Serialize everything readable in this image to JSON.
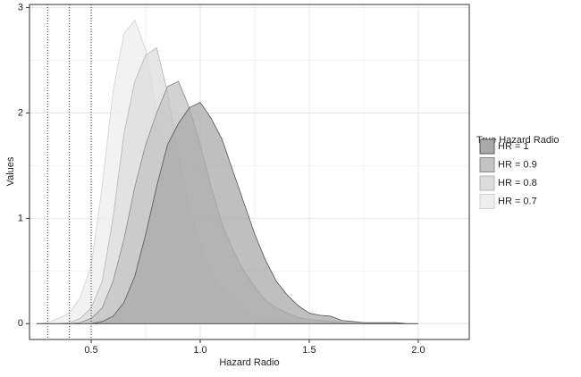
{
  "chart_data": {
    "type": "density",
    "xlabel": "Hazard Radio",
    "ylabel": "Values",
    "legend_title": "True Hazard Radio",
    "legend": "right",
    "grid": true,
    "x": [
      0.25,
      0.3,
      0.35,
      0.4,
      0.45,
      0.5,
      0.55,
      0.6,
      0.65,
      0.7,
      0.75,
      0.8,
      0.85,
      0.9,
      0.95,
      1.0,
      1.05,
      1.1,
      1.15,
      1.2,
      1.25,
      1.3,
      1.35,
      1.4,
      1.45,
      1.5,
      1.55,
      1.6,
      1.65,
      1.7,
      1.75,
      1.8,
      1.85,
      1.9,
      1.95,
      2.0
    ],
    "series": [
      {
        "name": "HR = 1",
        "color": "#a9a9a9",
        "line": "#555555",
        "values": [
          0,
          0,
          0,
          0,
          0,
          0,
          0.02,
          0.07,
          0.2,
          0.45,
          0.85,
          1.3,
          1.7,
          1.9,
          2.05,
          2.1,
          1.95,
          1.75,
          1.45,
          1.15,
          0.85,
          0.6,
          0.4,
          0.27,
          0.17,
          0.1,
          0.08,
          0.07,
          0.03,
          0.02,
          0.01,
          0.01,
          0.01,
          0.01,
          0,
          0
        ]
      },
      {
        "name": "HR = 0.9",
        "color": "#c3c3c3",
        "line": "#8a8a8a",
        "values": [
          0,
          0,
          0,
          0,
          0.01,
          0.05,
          0.15,
          0.4,
          0.8,
          1.3,
          1.7,
          2.0,
          2.25,
          2.3,
          2.05,
          1.7,
          1.3,
          0.95,
          0.7,
          0.5,
          0.35,
          0.22,
          0.15,
          0.1,
          0.06,
          0.04,
          0.03,
          0.02,
          0.01,
          0,
          0,
          0,
          0,
          0,
          0,
          0
        ]
      },
      {
        "name": "HR = 0.8",
        "color": "#dcdcdc",
        "line": "#b5b5b5",
        "values": [
          0,
          0,
          0,
          0.01,
          0.05,
          0.15,
          0.4,
          1.0,
          1.8,
          2.3,
          2.55,
          2.62,
          2.2,
          1.6,
          1.1,
          0.75,
          0.5,
          0.33,
          0.2,
          0.12,
          0.08,
          0.05,
          0.03,
          0.02,
          0.01,
          0,
          0,
          0,
          0,
          0,
          0,
          0,
          0,
          0,
          0,
          0
        ]
      },
      {
        "name": "HR = 0.7",
        "color": "#eeeeee",
        "line": "#d0d0d0",
        "values": [
          0,
          0.01,
          0.05,
          0.1,
          0.25,
          0.55,
          1.3,
          2.2,
          2.75,
          2.88,
          2.6,
          2.0,
          1.3,
          0.85,
          0.55,
          0.35,
          0.2,
          0.12,
          0.08,
          0.05,
          0.03,
          0.01,
          0,
          0,
          0,
          0,
          0,
          0,
          0,
          0,
          0,
          0,
          0,
          0,
          0,
          0
        ]
      }
    ],
    "vlines": [
      0.3,
      0.4,
      0.5
    ],
    "xlim": [
      0.217,
      2.234
    ],
    "ylim": [
      -0.15,
      3.03
    ],
    "xticks": [
      0.5,
      {
        "value": 1,
        "label": "1.0"
      },
      1.5,
      {
        "value": 2,
        "label": "2.0"
      }
    ],
    "yticks": [
      0,
      1,
      2,
      3
    ]
  }
}
